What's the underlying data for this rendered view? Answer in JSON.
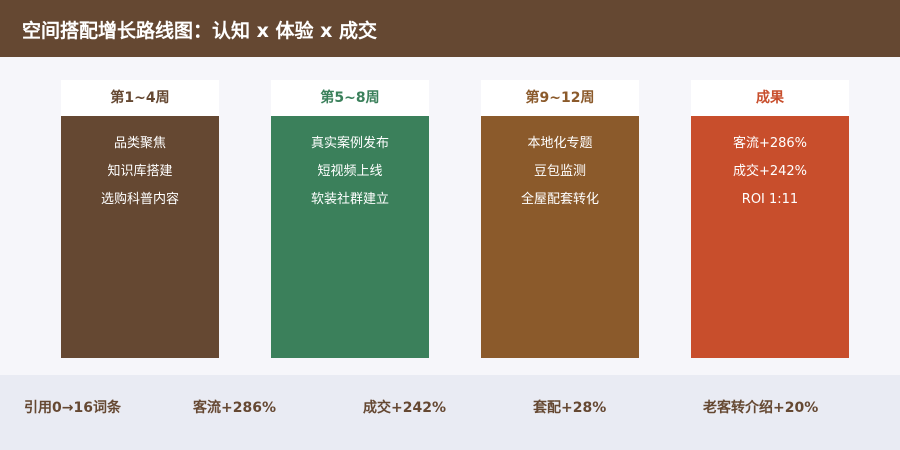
{
  "header": {
    "title": "空间搭配增长路线图：认知 x 体验 x 成交"
  },
  "columns": [
    {
      "title": "第1~4周",
      "color": "#654832",
      "items": [
        "品类聚焦",
        "知识库搭建",
        "选购科普内容"
      ]
    },
    {
      "title": "第5~8周",
      "color": "#3b805b",
      "items": [
        "真实案例发布",
        "短视频上线",
        "软装社群建立"
      ]
    },
    {
      "title": "第9~12周",
      "color": "#8b5a2b",
      "items": [
        "本地化专题",
        "豆包监测",
        "全屋配套转化"
      ]
    },
    {
      "title": "成果",
      "color": "#c84e2c",
      "items": [
        "客流+286%",
        "成交+242%",
        "ROI 1:11"
      ]
    }
  ],
  "footer": {
    "items": [
      "引用0→16词条",
      "客流+286%",
      "成交+242%",
      "套配+28%",
      "老客转介绍+20%"
    ]
  }
}
